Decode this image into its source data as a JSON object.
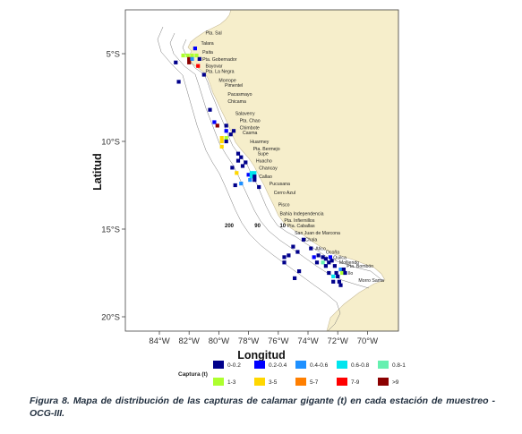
{
  "chart_data": {
    "type": "heatmap",
    "title": "",
    "xlabel": "Longitud",
    "ylabel": "Latitud",
    "xlim": [
      -86,
      -70
    ],
    "ylim": [
      -21,
      -2
    ],
    "x_ticks": [
      {
        "value": -84,
        "label": "84°W"
      },
      {
        "value": -82,
        "label": "82°W"
      },
      {
        "value": -80,
        "label": "80°W"
      },
      {
        "value": -78,
        "label": "78°W"
      },
      {
        "value": -76,
        "label": "76°W"
      },
      {
        "value": -74,
        "label": "74°W"
      },
      {
        "value": -72,
        "label": "72°W"
      },
      {
        "value": -70,
        "label": "70°W"
      }
    ],
    "y_ticks": [
      {
        "value": -5,
        "label": "5°S"
      },
      {
        "value": -10,
        "label": "10°S"
      },
      {
        "value": -15,
        "label": "15°S"
      },
      {
        "value": -20,
        "label": "20°S"
      }
    ],
    "depth_labels": [
      {
        "label": "200",
        "lon": -79.3,
        "lat": -14.9
      },
      {
        "label": "90",
        "lon": -77.4,
        "lat": -14.9
      },
      {
        "label": "10",
        "lon": -75.7,
        "lat": -14.9
      }
    ],
    "places": [
      {
        "name": "Pta. Sal",
        "lon": -80.9,
        "lat": -3.9
      },
      {
        "name": "Talara",
        "lon": -81.2,
        "lat": -4.5
      },
      {
        "name": "Paita",
        "lon": -81.1,
        "lat": -5.0
      },
      {
        "name": "Pta. Gobernador",
        "lon": -81.1,
        "lat": -5.4
      },
      {
        "name": "Bayovar",
        "lon": -80.9,
        "lat": -5.8
      },
      {
        "name": "Pta. La Negra",
        "lon": -80.9,
        "lat": -6.1
      },
      {
        "name": "Morrope",
        "lon": -80.0,
        "lat": -6.6
      },
      {
        "name": "Pimentel",
        "lon": -79.6,
        "lat": -6.9
      },
      {
        "name": "Pacasmayo",
        "lon": -79.4,
        "lat": -7.4
      },
      {
        "name": "Chicama",
        "lon": -79.4,
        "lat": -7.8
      },
      {
        "name": "Salaverry",
        "lon": -78.9,
        "lat": -8.5
      },
      {
        "name": "Pta. Chao",
        "lon": -78.6,
        "lat": -8.9
      },
      {
        "name": "Chimbote",
        "lon": -78.6,
        "lat": -9.3
      },
      {
        "name": "Casma",
        "lon": -78.4,
        "lat": -9.6
      },
      {
        "name": "Huarmey",
        "lon": -77.9,
        "lat": -10.1
      },
      {
        "name": "Pta. Bermejo",
        "lon": -77.7,
        "lat": -10.5
      },
      {
        "name": "Supe",
        "lon": -77.4,
        "lat": -10.8
      },
      {
        "name": "Huacho",
        "lon": -77.5,
        "lat": -11.2
      },
      {
        "name": "Chancay",
        "lon": -77.3,
        "lat": -11.6
      },
      {
        "name": "Callao",
        "lon": -77.3,
        "lat": -12.1
      },
      {
        "name": "Pucusana",
        "lon": -76.6,
        "lat": -12.5
      },
      {
        "name": "Cerro Azul",
        "lon": -76.3,
        "lat": -13.0
      },
      {
        "name": "Pisco",
        "lon": -76.0,
        "lat": -13.7
      },
      {
        "name": "Bahía Independencia",
        "lon": -75.9,
        "lat": -14.2
      },
      {
        "name": "Pta. Infiernillos",
        "lon": -75.6,
        "lat": -14.6
      },
      {
        "name": "Pta. Caballas",
        "lon": -75.4,
        "lat": -14.9
      },
      {
        "name": "San Juan de Marcona",
        "lon": -74.9,
        "lat": -15.3
      },
      {
        "name": "Chala",
        "lon": -74.2,
        "lat": -15.7
      },
      {
        "name": "Atico",
        "lon": -73.5,
        "lat": -16.2
      },
      {
        "name": "Ocoña",
        "lon": -72.8,
        "lat": -16.4
      },
      {
        "name": "Quilca",
        "lon": -72.3,
        "lat": -16.7
      },
      {
        "name": "Molliendo",
        "lon": -71.9,
        "lat": -17.0
      },
      {
        "name": "Pta. Bombón",
        "lon": -71.4,
        "lat": -17.2
      },
      {
        "name": "Ilo",
        "lon": -71.3,
        "lat": -17.6
      },
      {
        "name": "Morro Sama",
        "lon": -70.6,
        "lat": -18.0
      }
    ],
    "legend": {
      "title": "Captura (t)",
      "placement": "bottom",
      "categories": [
        {
          "label": "0-0.2",
          "color": "#00008b"
        },
        {
          "label": "0.2-0.4",
          "color": "#0000ff"
        },
        {
          "label": "0.4-0.6",
          "color": "#1e90ff"
        },
        {
          "label": "0.6-0.8",
          "color": "#00e5ee"
        },
        {
          "label": "0.8-1",
          "color": "#66f0b0"
        },
        {
          "label": "1-3",
          "color": "#adff2f"
        },
        {
          "label": "3-5",
          "color": "#ffd700"
        },
        {
          "label": "5-7",
          "color": "#ff7f00"
        },
        {
          "label": "7-9",
          "color": "#ff0000"
        },
        {
          "label": ">9",
          "color": "#8b0000"
        }
      ]
    },
    "cell_size_deg": 0.25,
    "cells": [
      {
        "lon": -81.6,
        "lat": -4.7,
        "cat": 1
      },
      {
        "lon": -82.4,
        "lat": -5.1,
        "cat": 5
      },
      {
        "lon": -82.1,
        "lat": -5.1,
        "cat": 5
      },
      {
        "lon": -81.8,
        "lat": -5.1,
        "cat": 5
      },
      {
        "lon": -81.5,
        "lat": -5.1,
        "cat": 5
      },
      {
        "lon": -82.0,
        "lat": -5.3,
        "cat": 9
      },
      {
        "lon": -81.8,
        "lat": -5.3,
        "cat": 2
      },
      {
        "lon": -82.9,
        "lat": -5.5,
        "cat": 0
      },
      {
        "lon": -82.0,
        "lat": -5.5,
        "cat": 9
      },
      {
        "lon": -81.3,
        "lat": -5.3,
        "cat": 0
      },
      {
        "lon": -81.4,
        "lat": -5.7,
        "cat": 8
      },
      {
        "lon": -81.0,
        "lat": -6.2,
        "cat": 0
      },
      {
        "lon": -82.7,
        "lat": -6.6,
        "cat": 0
      },
      {
        "lon": -80.6,
        "lat": -8.2,
        "cat": 0
      },
      {
        "lon": -80.3,
        "lat": -8.9,
        "cat": 1
      },
      {
        "lon": -80.1,
        "lat": -9.1,
        "cat": 9
      },
      {
        "lon": -79.5,
        "lat": -9.1,
        "cat": 0
      },
      {
        "lon": -79.5,
        "lat": -9.4,
        "cat": 1
      },
      {
        "lon": -79.2,
        "lat": -9.6,
        "cat": 0
      },
      {
        "lon": -79.0,
        "lat": -9.4,
        "cat": 0
      },
      {
        "lon": -79.8,
        "lat": -9.8,
        "cat": 6
      },
      {
        "lon": -79.5,
        "lat": -9.8,
        "cat": 5
      },
      {
        "lon": -79.8,
        "lat": -10.0,
        "cat": 6
      },
      {
        "lon": -79.5,
        "lat": -10.0,
        "cat": 0
      },
      {
        "lon": -79.8,
        "lat": -10.3,
        "cat": 6
      },
      {
        "lon": -78.7,
        "lat": -10.7,
        "cat": 0
      },
      {
        "lon": -78.5,
        "lat": -10.9,
        "cat": 0
      },
      {
        "lon": -78.7,
        "lat": -11.1,
        "cat": 0
      },
      {
        "lon": -78.2,
        "lat": -11.2,
        "cat": 0
      },
      {
        "lon": -78.4,
        "lat": -11.4,
        "cat": 0
      },
      {
        "lon": -79.1,
        "lat": -11.5,
        "cat": 0
      },
      {
        "lon": -78.8,
        "lat": -11.8,
        "cat": 6
      },
      {
        "lon": -78.0,
        "lat": -11.9,
        "cat": 1
      },
      {
        "lon": -77.8,
        "lat": -11.8,
        "cat": 3
      },
      {
        "lon": -77.6,
        "lat": -11.8,
        "cat": 3
      },
      {
        "lon": -77.8,
        "lat": -12.0,
        "cat": 3
      },
      {
        "lon": -77.6,
        "lat": -12.0,
        "cat": 0
      },
      {
        "lon": -77.9,
        "lat": -12.2,
        "cat": 2
      },
      {
        "lon": -77.6,
        "lat": -12.2,
        "cat": 0
      },
      {
        "lon": -78.5,
        "lat": -12.4,
        "cat": 2
      },
      {
        "lon": -78.9,
        "lat": -12.5,
        "cat": 0
      },
      {
        "lon": -77.3,
        "lat": -12.6,
        "cat": 0
      },
      {
        "lon": -74.3,
        "lat": -15.6,
        "cat": 0
      },
      {
        "lon": -75.0,
        "lat": -16.0,
        "cat": 0
      },
      {
        "lon": -74.7,
        "lat": -16.3,
        "cat": 0
      },
      {
        "lon": -73.8,
        "lat": -16.1,
        "cat": 0
      },
      {
        "lon": -75.3,
        "lat": -16.5,
        "cat": 0
      },
      {
        "lon": -75.6,
        "lat": -16.6,
        "cat": 0
      },
      {
        "lon": -75.6,
        "lat": -16.9,
        "cat": 0
      },
      {
        "lon": -73.6,
        "lat": -16.6,
        "cat": 1
      },
      {
        "lon": -73.3,
        "lat": -16.5,
        "cat": 0
      },
      {
        "lon": -73.0,
        "lat": -16.6,
        "cat": 0
      },
      {
        "lon": -72.8,
        "lat": -16.7,
        "cat": 0
      },
      {
        "lon": -72.5,
        "lat": -16.6,
        "cat": 1
      },
      {
        "lon": -73.4,
        "lat": -16.9,
        "cat": 0
      },
      {
        "lon": -73.0,
        "lat": -16.9,
        "cat": 4
      },
      {
        "lon": -72.6,
        "lat": -16.9,
        "cat": 0
      },
      {
        "lon": -72.4,
        "lat": -16.8,
        "cat": 0
      },
      {
        "lon": -72.8,
        "lat": -17.1,
        "cat": 0
      },
      {
        "lon": -72.2,
        "lat": -17.1,
        "cat": 0
      },
      {
        "lon": -71.8,
        "lat": -17.3,
        "cat": 2
      },
      {
        "lon": -71.6,
        "lat": -17.3,
        "cat": 0
      },
      {
        "lon": -74.6,
        "lat": -17.4,
        "cat": 0
      },
      {
        "lon": -72.6,
        "lat": -17.5,
        "cat": 0
      },
      {
        "lon": -72.1,
        "lat": -17.5,
        "cat": 0
      },
      {
        "lon": -71.7,
        "lat": -17.5,
        "cat": 5
      },
      {
        "lon": -71.5,
        "lat": -17.5,
        "cat": 0
      },
      {
        "lon": -72.3,
        "lat": -17.7,
        "cat": 3
      },
      {
        "lon": -72.0,
        "lat": -17.7,
        "cat": 0
      },
      {
        "lon": -74.9,
        "lat": -17.8,
        "cat": 0
      },
      {
        "lon": -72.3,
        "lat": -18.0,
        "cat": 0
      },
      {
        "lon": -71.9,
        "lat": -18.0,
        "cat": 0
      },
      {
        "lon": -71.8,
        "lat": -18.2,
        "cat": 0
      }
    ]
  },
  "caption": {
    "text": "Figura 8. Mapa de distribución de las capturas de calamar gigante (t) en cada estación de muestreo - OCG-III."
  }
}
